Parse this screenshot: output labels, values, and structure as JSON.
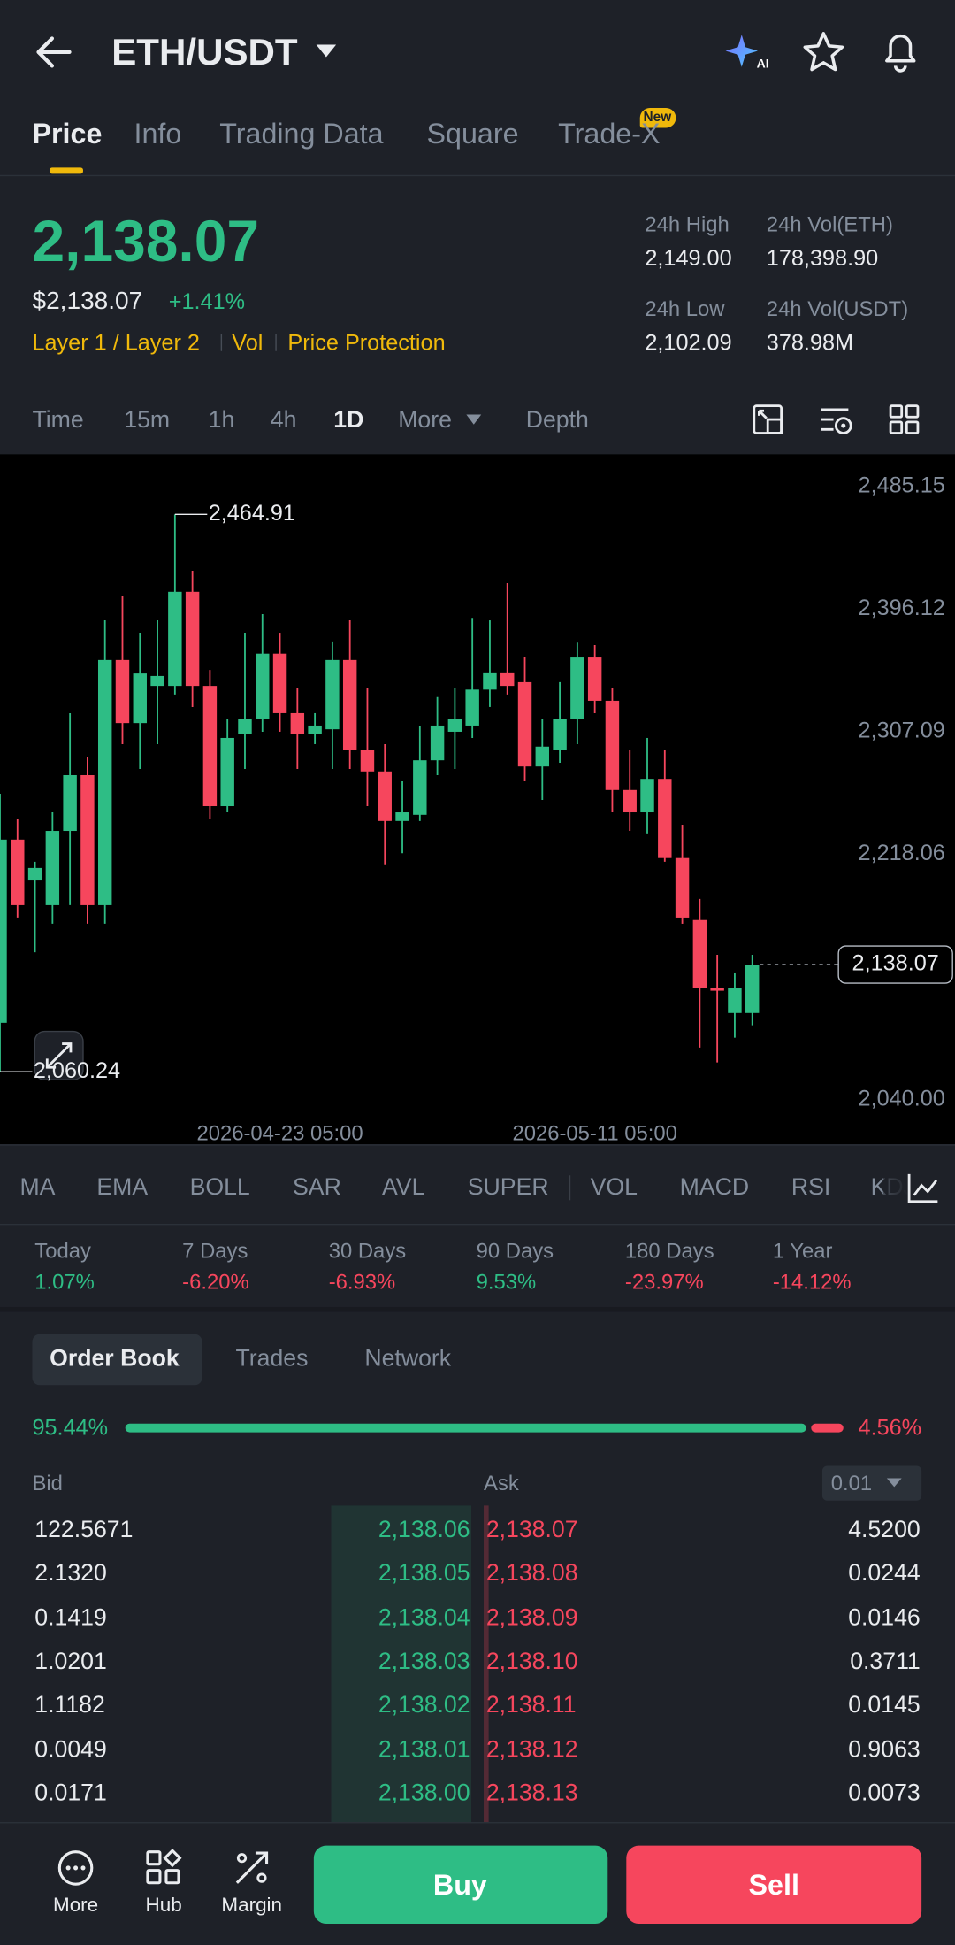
{
  "header": {
    "pair": "ETH/USDT"
  },
  "tabs": [
    "Price",
    "Info",
    "Trading Data",
    "Square",
    "Trade-X"
  ],
  "tab_badge": "New",
  "price": {
    "last": "2,138.07",
    "fiat": "$2,138.07",
    "change": "+1.41%",
    "tags": [
      "Layer 1 / Layer 2",
      "Vol",
      "Price Protection"
    ]
  },
  "stats": [
    {
      "label": "24h High",
      "value": "2,149.00"
    },
    {
      "label": "24h Vol(ETH)",
      "value": "178,398.90"
    },
    {
      "label": "24h Low",
      "value": "2,102.09"
    },
    {
      "label": "24h Vol(USDT)",
      "value": "378.98M"
    }
  ],
  "intervals": [
    "Time",
    "15m",
    "1h",
    "4h",
    "1D",
    "More",
    "Depth"
  ],
  "chart_data": {
    "type": "candlestick",
    "x": [
      "2026-04-07 05:00",
      "2026-04-08 05:00",
      "2026-04-09 05:00",
      "2026-04-10 05:00",
      "2026-04-11 05:00",
      "2026-04-12 05:00",
      "2026-04-13 05:00",
      "2026-04-14 05:00",
      "2026-04-15 05:00",
      "2026-04-16 05:00",
      "2026-04-17 05:00",
      "2026-04-18 05:00",
      "2026-04-19 05:00",
      "2026-04-20 05:00",
      "2026-04-21 05:00",
      "2026-04-22 05:00",
      "2026-04-23 05:00",
      "2026-04-24 05:00",
      "2026-04-25 05:00",
      "2026-04-26 05:00",
      "2026-04-27 05:00",
      "2026-04-28 05:00",
      "2026-04-29 05:00",
      "2026-04-30 05:00",
      "2026-05-01 05:00",
      "2026-05-02 05:00",
      "2026-05-03 05:00",
      "2026-05-04 05:00",
      "2026-05-05 05:00",
      "2026-05-06 05:00",
      "2026-05-07 05:00",
      "2026-05-08 05:00",
      "2026-05-09 05:00",
      "2026-05-10 05:00",
      "2026-05-11 05:00",
      "2026-05-12 05:00",
      "2026-05-13 05:00",
      "2026-05-14 05:00",
      "2026-05-15 05:00",
      "2026-05-16 05:00",
      "2026-05-17 05:00",
      "2026-05-18 05:00",
      "2026-05-19 05:00",
      "2026-05-20 05:00"
    ],
    "open": [
      2095.8,
      2228.8,
      2199.1,
      2181.2,
      2235.1,
      2275.6,
      2181.2,
      2359.2,
      2313.4,
      2340.4,
      2340.4,
      2408.7,
      2340.4,
      2253.1,
      2305.3,
      2316.1,
      2363.8,
      2320.6,
      2305.3,
      2308.9,
      2359.2,
      2293.6,
      2278.3,
      2242.3,
      2246.8,
      2286.4,
      2307.1,
      2311.6,
      2337.7,
      2350.2,
      2343.1,
      2281.9,
      2293.6,
      2316.1,
      2361.0,
      2329.6,
      2264.8,
      2248.6,
      2272.9,
      2215.4,
      2170.4,
      2120.9,
      2102.9,
      2102.9
    ],
    "high": [
      2262.1,
      2244.1,
      2212.7,
      2248.6,
      2320.6,
      2289.1,
      2388.0,
      2406.0,
      2379.0,
      2388.0,
      2464.91,
      2424.0,
      2352.0,
      2316.1,
      2379.0,
      2392.5,
      2379.0,
      2338.6,
      2320.6,
      2372.7,
      2388.0,
      2338.6,
      2298.1,
      2271.1,
      2311.6,
      2332.3,
      2338.6,
      2389.8,
      2388.0,
      2415.0,
      2361.0,
      2316.1,
      2343.1,
      2371.8,
      2370.0,
      2338.6,
      2293.6,
      2302.6,
      2293.6,
      2239.6,
      2185.7,
      2145.2,
      2131.7,
      2145.2
    ],
    "low": [
      2060.24,
      2172.2,
      2147.0,
      2167.7,
      2181.2,
      2167.7,
      2167.7,
      2298.1,
      2280.1,
      2298.1,
      2334.1,
      2325.1,
      2244.1,
      2248.6,
      2280.1,
      2307.1,
      2307.1,
      2280.1,
      2298.1,
      2280.1,
      2280.1,
      2253.1,
      2210.9,
      2218.9,
      2242.3,
      2275.6,
      2280.1,
      2302.6,
      2325.1,
      2334.1,
      2271.1,
      2257.6,
      2284.6,
      2298.1,
      2320.6,
      2248.6,
      2235.1,
      2233.3,
      2212.7,
      2167.7,
      2077.8,
      2067.0,
      2085.0,
      2094.0
    ],
    "close": [
      2228.8,
      2181.2,
      2208.2,
      2235.1,
      2275.6,
      2181.2,
      2359.2,
      2313.4,
      2349.4,
      2347.6,
      2408.7,
      2340.4,
      2253.1,
      2302.6,
      2316.1,
      2363.8,
      2320.6,
      2305.3,
      2311.6,
      2359.2,
      2293.6,
      2278.3,
      2242.3,
      2248.6,
      2286.4,
      2311.6,
      2316.1,
      2337.7,
      2350.2,
      2340.4,
      2281.9,
      2296.3,
      2316.1,
      2361.0,
      2329.6,
      2264.8,
      2248.6,
      2272.9,
      2215.4,
      2172.2,
      2120.9,
      2119.1,
      2120.9,
      2138.07
    ],
    "up_color": "#2ebd85",
    "down_color": "#f6465d",
    "xlim": [
      "2026-04-07 05:00",
      "2026-05-24 17:00"
    ],
    "xticks": [
      "2026-04-23 05:00",
      "2026-05-11 05:00"
    ],
    "ylim": [
      2040,
      2485.15
    ],
    "yticks": [
      {
        "value": 2040,
        "label": "2,040.00"
      },
      {
        "value": 2218.06,
        "label": "2,218.06"
      },
      {
        "value": 2307.09,
        "label": "2,307.09"
      },
      {
        "value": 2396.12,
        "label": "2,396.12"
      },
      {
        "value": 2485.15,
        "label": "2,485.15"
      }
    ],
    "annotations": [
      {
        "x": "2026-04-17 05:00",
        "value": 2464.91,
        "label": "2,464.91"
      },
      {
        "x": "2026-04-07 05:00",
        "value": 2060.24,
        "label": "2,060.24"
      },
      {
        "x": "2026-05-20 05:00",
        "value": 2138.07,
        "label": "2,138.07"
      }
    ]
  },
  "indicators": [
    "MA",
    "EMA",
    "BOLL",
    "SAR",
    "AVL",
    "SUPER",
    "VOL",
    "MACD",
    "RSI",
    "KDJ"
  ],
  "performance": [
    {
      "label": "Today",
      "value": "1.07%"
    },
    {
      "label": "7 Days",
      "value": "-6.20%"
    },
    {
      "label": "30 Days",
      "value": "-6.93%"
    },
    {
      "label": "90 Days",
      "value": "9.53%"
    },
    {
      "label": "180 Days",
      "value": "-23.97%"
    },
    {
      "label": "1 Year",
      "value": "-14.12%"
    }
  ],
  "order_book": {
    "tabs": [
      "Order Book",
      "Trades",
      "Network"
    ],
    "bid_ratio": {
      "value": 95.44,
      "label": "95.44%"
    },
    "ask_ratio": {
      "value": 4.56,
      "label": "4.56%"
    },
    "bid_header": "Bid",
    "ask_header": "Ask",
    "precision": "0.01",
    "rows": [
      [
        "122.5671",
        "2,138.06",
        "2,138.07",
        "4.5200"
      ],
      [
        "2.1320",
        "2,138.05",
        "2,138.08",
        "0.0244"
      ],
      [
        "0.1419",
        "2,138.04",
        "2,138.09",
        "0.0146"
      ],
      [
        "1.0201",
        "2,138.03",
        "2,138.10",
        "0.3711"
      ],
      [
        "1.1182",
        "2,138.02",
        "2,138.11",
        "0.0145"
      ],
      [
        "0.0049",
        "2,138.01",
        "2,138.12",
        "0.9063"
      ],
      [
        "0.0171",
        "2,138.00",
        "2,138.13",
        "0.0073"
      ]
    ]
  },
  "bottom_bar": {
    "actions": [
      "More",
      "Hub",
      "Margin"
    ],
    "buy": "Buy",
    "sell": "Sell"
  }
}
